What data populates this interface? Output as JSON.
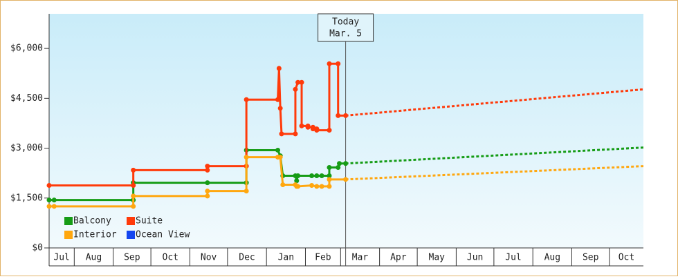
{
  "chart_data": {
    "type": "line",
    "xlim": [
      11,
      484
    ],
    "xticks": [
      {
        "value": 0,
        "label": "Jul"
      },
      {
        "value": 31,
        "label": "Aug"
      },
      {
        "value": 62,
        "label": "Sep"
      },
      {
        "value": 92,
        "label": "Oct"
      },
      {
        "value": 123,
        "label": "Nov"
      },
      {
        "value": 153,
        "label": "Dec"
      },
      {
        "value": 184,
        "label": "Jan"
      },
      {
        "value": 215,
        "label": "Feb"
      },
      {
        "value": 243,
        "label": "Mar"
      },
      {
        "value": 274,
        "label": "Apr"
      },
      {
        "value": 304,
        "label": "May"
      },
      {
        "value": 335,
        "label": "Jun"
      },
      {
        "value": 365,
        "label": "Jul"
      },
      {
        "value": 396,
        "label": "Aug"
      },
      {
        "value": 427,
        "label": "Sep"
      },
      {
        "value": 457,
        "label": "Oct"
      }
    ],
    "ylim": [
      0,
      7000
    ],
    "yticks": [
      {
        "value": 0,
        "label": "$0"
      },
      {
        "value": 1500,
        "label": "$1,500"
      },
      {
        "value": 3000,
        "label": "$3,000"
      },
      {
        "value": 4500,
        "label": "$4,500"
      },
      {
        "value": 6000,
        "label": "$6,000"
      }
    ],
    "legend": "lower-left",
    "series": [
      {
        "name": "Balcony",
        "color": "#169c16",
        "x": [
          11,
          15,
          78,
          78,
          137,
          168,
          168,
          193,
          195,
          197,
          207,
          208,
          209,
          220,
          224,
          228,
          234,
          234,
          241,
          242,
          247
        ],
        "values": [
          1440,
          1440,
          1440,
          1960,
          1960,
          1960,
          2940,
          2940,
          2770,
          2170,
          2170,
          2020,
          2170,
          2170,
          2170,
          2170,
          2170,
          2420,
          2420,
          2540,
          2540
        ],
        "forecast": {
          "x": [
            247,
            484
          ],
          "values": [
            2540,
            3020
          ]
        }
      },
      {
        "name": "Suite",
        "color": "#ff3a0a",
        "x": [
          11,
          78,
          78,
          137,
          137,
          168,
          168,
          193,
          194,
          195,
          196,
          207,
          207,
          209,
          212,
          212,
          217,
          217,
          221,
          221,
          224,
          224,
          234,
          234,
          241,
          241,
          247
        ],
        "values": [
          1880,
          1880,
          2340,
          2340,
          2460,
          2460,
          4460,
          4460,
          5400,
          4200,
          3430,
          3430,
          4770,
          4980,
          4980,
          3670,
          3670,
          3630,
          3630,
          3580,
          3580,
          3540,
          3540,
          5540,
          5540,
          3980,
          3980
        ],
        "forecast": {
          "x": [
            247,
            484
          ],
          "values": [
            3980,
            4770
          ]
        }
      },
      {
        "name": "Interior",
        "color": "#ffa70f",
        "x": [
          11,
          15,
          78,
          78,
          137,
          137,
          168,
          168,
          193,
          195,
          197,
          207,
          208,
          209,
          220,
          224,
          228,
          234,
          234,
          247
        ],
        "values": [
          1250,
          1250,
          1250,
          1560,
          1560,
          1710,
          1710,
          2730,
          2730,
          2730,
          1900,
          1900,
          1850,
          1850,
          1880,
          1850,
          1850,
          1850,
          2060,
          2060
        ],
        "forecast": {
          "x": [
            247,
            484
          ],
          "values": [
            2060,
            2460
          ]
        }
      },
      {
        "name": "Ocean View",
        "color": "#1446f0",
        "x": [],
        "values": []
      }
    ],
    "annotation": {
      "x": 247,
      "lines": [
        "Today",
        "Mar. 5"
      ]
    }
  }
}
